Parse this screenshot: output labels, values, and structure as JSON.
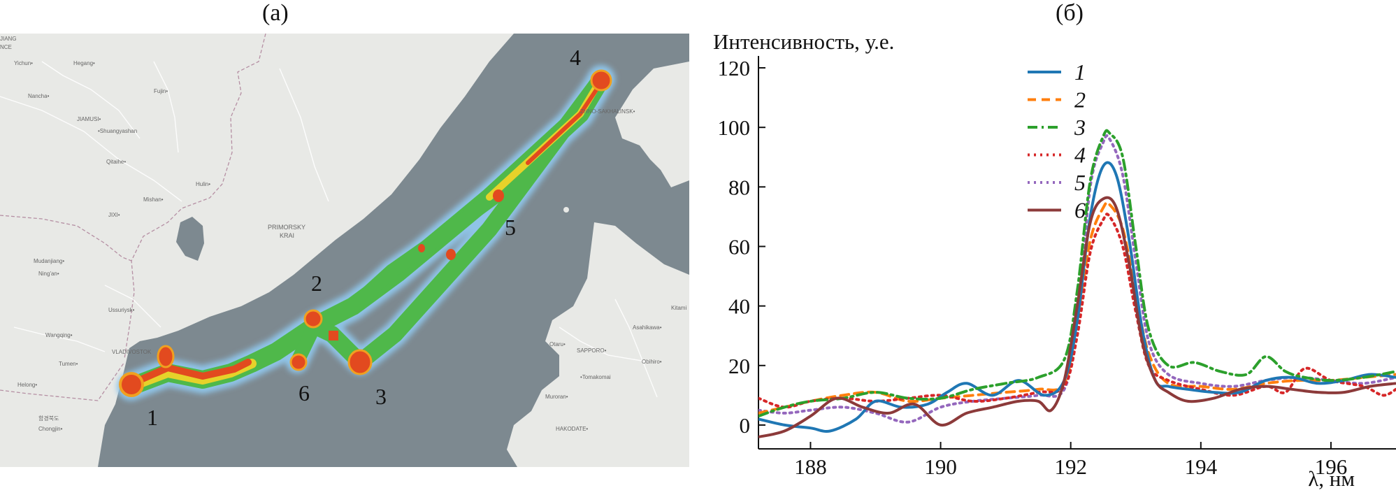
{
  "panels": {
    "a_label": "(а)",
    "b_label": "(б)"
  },
  "map": {
    "point_labels": [
      "1",
      "2",
      "3",
      "4",
      "5",
      "6"
    ],
    "place_names": {
      "top_left_1": "JIANG",
      "top_left_2": "NCE",
      "yichun": "Yichun•",
      "hegang": "Hegang•",
      "fujin": "Fujin•",
      "nancha": "Nancha•",
      "jiamusi": "JIAMUSI•",
      "shuangyashan": "•Shuangyashan",
      "qitaihe": "Qitaihe•",
      "hulin": "Hulin•",
      "mishan": "Mishan•",
      "jixi": "JIXI•",
      "primorsky": "PRIMORSKY",
      "krai": "KRAI",
      "mudanjiang": "Mudanjiang•",
      "ningan": "Ning'an•",
      "ussuriysk": "Ussuriysk•",
      "wangqing": "Wangqing•",
      "vladivostok": "VLADIVOSTOK",
      "tumen": "Tumen•",
      "helong": "Helong•",
      "hamgyong": "함경북도",
      "chongjin": "Chongjin•",
      "sakhalinsk": "ZHNO-SAKHALINSK•",
      "asahikawa": "Asahikawa•",
      "otaru": "Otaru•",
      "sapporo": "SAPPORO•",
      "tomakomai": "•Tomakomai",
      "obihiro": "Obihiro•",
      "kitami": "Kitami",
      "muroran": "Muroran•",
      "hakodate": "HAKODATE•"
    }
  },
  "chart_data": {
    "type": "line",
    "ylabel": "Интенсивность, у.е.",
    "xlabel": "λ, нм",
    "xlim": [
      187.2,
      197.0
    ],
    "ylim": [
      -8,
      124
    ],
    "xticks": [
      188,
      190,
      192,
      194,
      196
    ],
    "yticks": [
      0,
      20,
      40,
      60,
      80,
      100,
      120
    ],
    "legend_position": "top-right",
    "series": [
      {
        "name": "1",
        "color": "#1f77b4",
        "dash": "solid",
        "x": [
          187.2,
          187.6,
          188.0,
          188.3,
          188.7,
          189.0,
          189.4,
          189.8,
          190.1,
          190.4,
          190.8,
          191.2,
          191.6,
          191.9,
          192.1,
          192.3,
          192.5,
          192.7,
          192.9,
          193.1,
          193.3,
          193.5,
          193.8,
          194.2,
          194.6,
          195.0,
          195.4,
          195.8,
          196.2,
          196.6,
          197.0
        ],
        "y": [
          2,
          0,
          -1,
          -2,
          2,
          8,
          6,
          7,
          11,
          14,
          10,
          15,
          10,
          15,
          35,
          70,
          87,
          84,
          62,
          32,
          15,
          13,
          12,
          11,
          11,
          15,
          16,
          14,
          15,
          17,
          16
        ]
      },
      {
        "name": "2",
        "color": "#ff7f0e",
        "dash": "12,8",
        "x": [
          187.2,
          187.6,
          188.0,
          188.5,
          189.0,
          189.5,
          190.0,
          190.5,
          191.0,
          191.5,
          191.9,
          192.1,
          192.3,
          192.5,
          192.6,
          192.8,
          193.0,
          193.2,
          193.5,
          194.0,
          194.5,
          195.0,
          195.5,
          196.0,
          196.5,
          197.0
        ],
        "y": [
          4,
          6,
          8,
          10,
          11,
          8,
          9,
          10,
          11,
          12,
          14,
          35,
          62,
          73,
          74,
          66,
          44,
          24,
          14,
          13,
          12,
          14,
          15,
          15,
          16,
          17
        ]
      },
      {
        "name": "3",
        "color": "#2ca02c",
        "dash": "14,6,3,6",
        "x": [
          187.2,
          187.6,
          188.0,
          188.5,
          189.0,
          189.5,
          190.0,
          190.5,
          191.0,
          191.5,
          191.9,
          192.1,
          192.3,
          192.5,
          192.6,
          192.8,
          193.0,
          193.2,
          193.5,
          193.9,
          194.3,
          194.7,
          195.0,
          195.3,
          195.6,
          196.0,
          196.5,
          197.0
        ],
        "y": [
          3,
          6,
          8,
          9,
          11,
          9,
          9,
          12,
          14,
          16,
          22,
          45,
          82,
          97,
          98,
          90,
          60,
          32,
          20,
          21,
          18,
          17,
          23,
          18,
          16,
          15,
          16,
          18
        ]
      },
      {
        "name": "4",
        "color": "#d62728",
        "dash": "3,6",
        "x": [
          187.2,
          187.6,
          188.0,
          188.5,
          189.0,
          189.5,
          190.0,
          190.5,
          191.0,
          191.5,
          191.9,
          192.1,
          192.3,
          192.5,
          192.6,
          192.8,
          193.0,
          193.2,
          193.5,
          194.0,
          194.5,
          195.0,
          195.3,
          195.6,
          196.0,
          196.5,
          196.8,
          197.0
        ],
        "y": [
          9,
          6,
          8,
          9,
          8,
          9,
          10,
          8,
          9,
          11,
          13,
          30,
          58,
          69,
          70,
          60,
          38,
          20,
          15,
          12,
          10,
          13,
          11,
          19,
          15,
          13,
          10,
          12
        ]
      },
      {
        "name": "5",
        "color": "#9467bd",
        "dash": "3,6",
        "x": [
          187.2,
          187.6,
          188.0,
          188.5,
          189.0,
          189.5,
          190.0,
          190.5,
          191.0,
          191.5,
          191.9,
          192.1,
          192.3,
          192.5,
          192.6,
          192.8,
          193.0,
          193.2,
          193.5,
          194.0,
          194.5,
          195.0,
          195.5,
          196.0,
          196.5,
          197.0
        ],
        "y": [
          5,
          4,
          5,
          6,
          4,
          1,
          6,
          8,
          9,
          10,
          12,
          35,
          80,
          95,
          96,
          84,
          55,
          28,
          17,
          14,
          13,
          15,
          16,
          15,
          14,
          16
        ]
      },
      {
        "name": "6",
        "color": "#8c3a3a",
        "dash": "solid",
        "x": [
          187.2,
          187.6,
          188.0,
          188.4,
          188.8,
          189.2,
          189.6,
          190.0,
          190.4,
          190.8,
          191.2,
          191.5,
          191.7,
          191.9,
          192.1,
          192.3,
          192.5,
          192.7,
          192.9,
          193.1,
          193.3,
          193.5,
          193.8,
          194.2,
          194.6,
          195.0,
          195.4,
          195.8,
          196.2,
          196.6,
          197.0
        ],
        "y": [
          -4,
          -2,
          3,
          9,
          6,
          4,
          7,
          0,
          4,
          6,
          8,
          8,
          5,
          15,
          40,
          68,
          76,
          73,
          54,
          28,
          15,
          11,
          8,
          9,
          12,
          13,
          12,
          11,
          11,
          13,
          14
        ]
      }
    ]
  }
}
